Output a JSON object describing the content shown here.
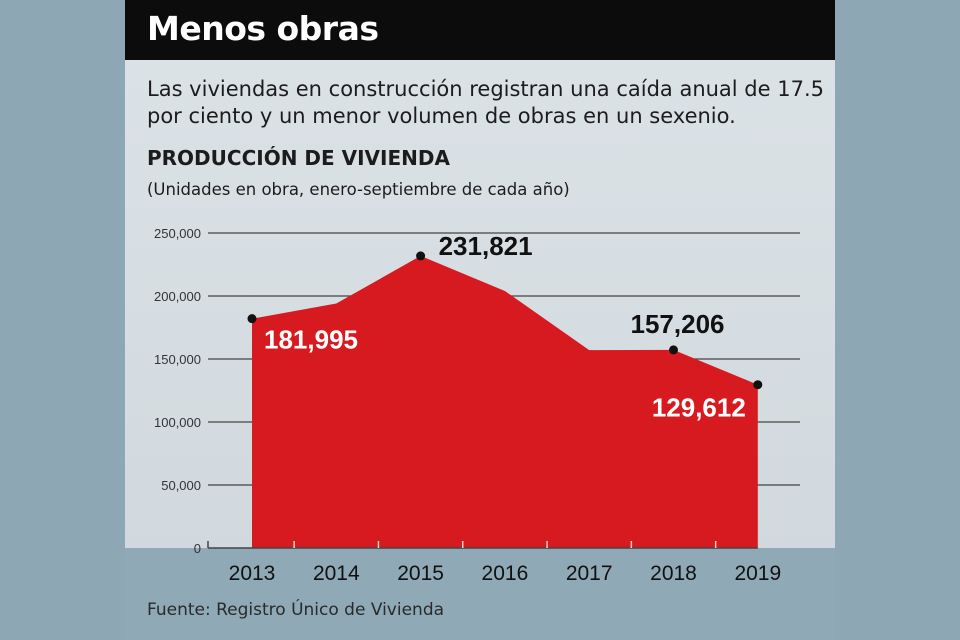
{
  "header": {
    "title": "Menos obras"
  },
  "subtitle": "Las viviendas en construcción registran una caída anual de 17.5 por ciento y un menor volumen de obras en un sexenio.",
  "source": "Fuente: Registro Único de Vivienda",
  "chart_data": {
    "type": "area",
    "title": "PRODUCCIÓN DE VIVIENDA",
    "subtitle": "(Unidades en obra, enero-septiembre de cada año)",
    "categories": [
      "2013",
      "2014",
      "2015",
      "2016",
      "2017",
      "2018",
      "2019"
    ],
    "values": [
      181995,
      194000,
      231821,
      204000,
      157000,
      157206,
      129612
    ],
    "labeled_points": [
      {
        "year": "2013",
        "label": "181,995",
        "color": "#ffffff"
      },
      {
        "year": "2015",
        "label": "231,821",
        "color": "#111111"
      },
      {
        "year": "2018",
        "label": "157,206",
        "color": "#111111"
      },
      {
        "year": "2019",
        "label": "129,612",
        "color": "#ffffff"
      }
    ],
    "yticks": [
      "0",
      "50,000",
      "100,000",
      "150,000",
      "200,000",
      "250,000"
    ],
    "ylim": [
      0,
      250000
    ],
    "grid": true,
    "fill_color": "#d71a1f"
  }
}
